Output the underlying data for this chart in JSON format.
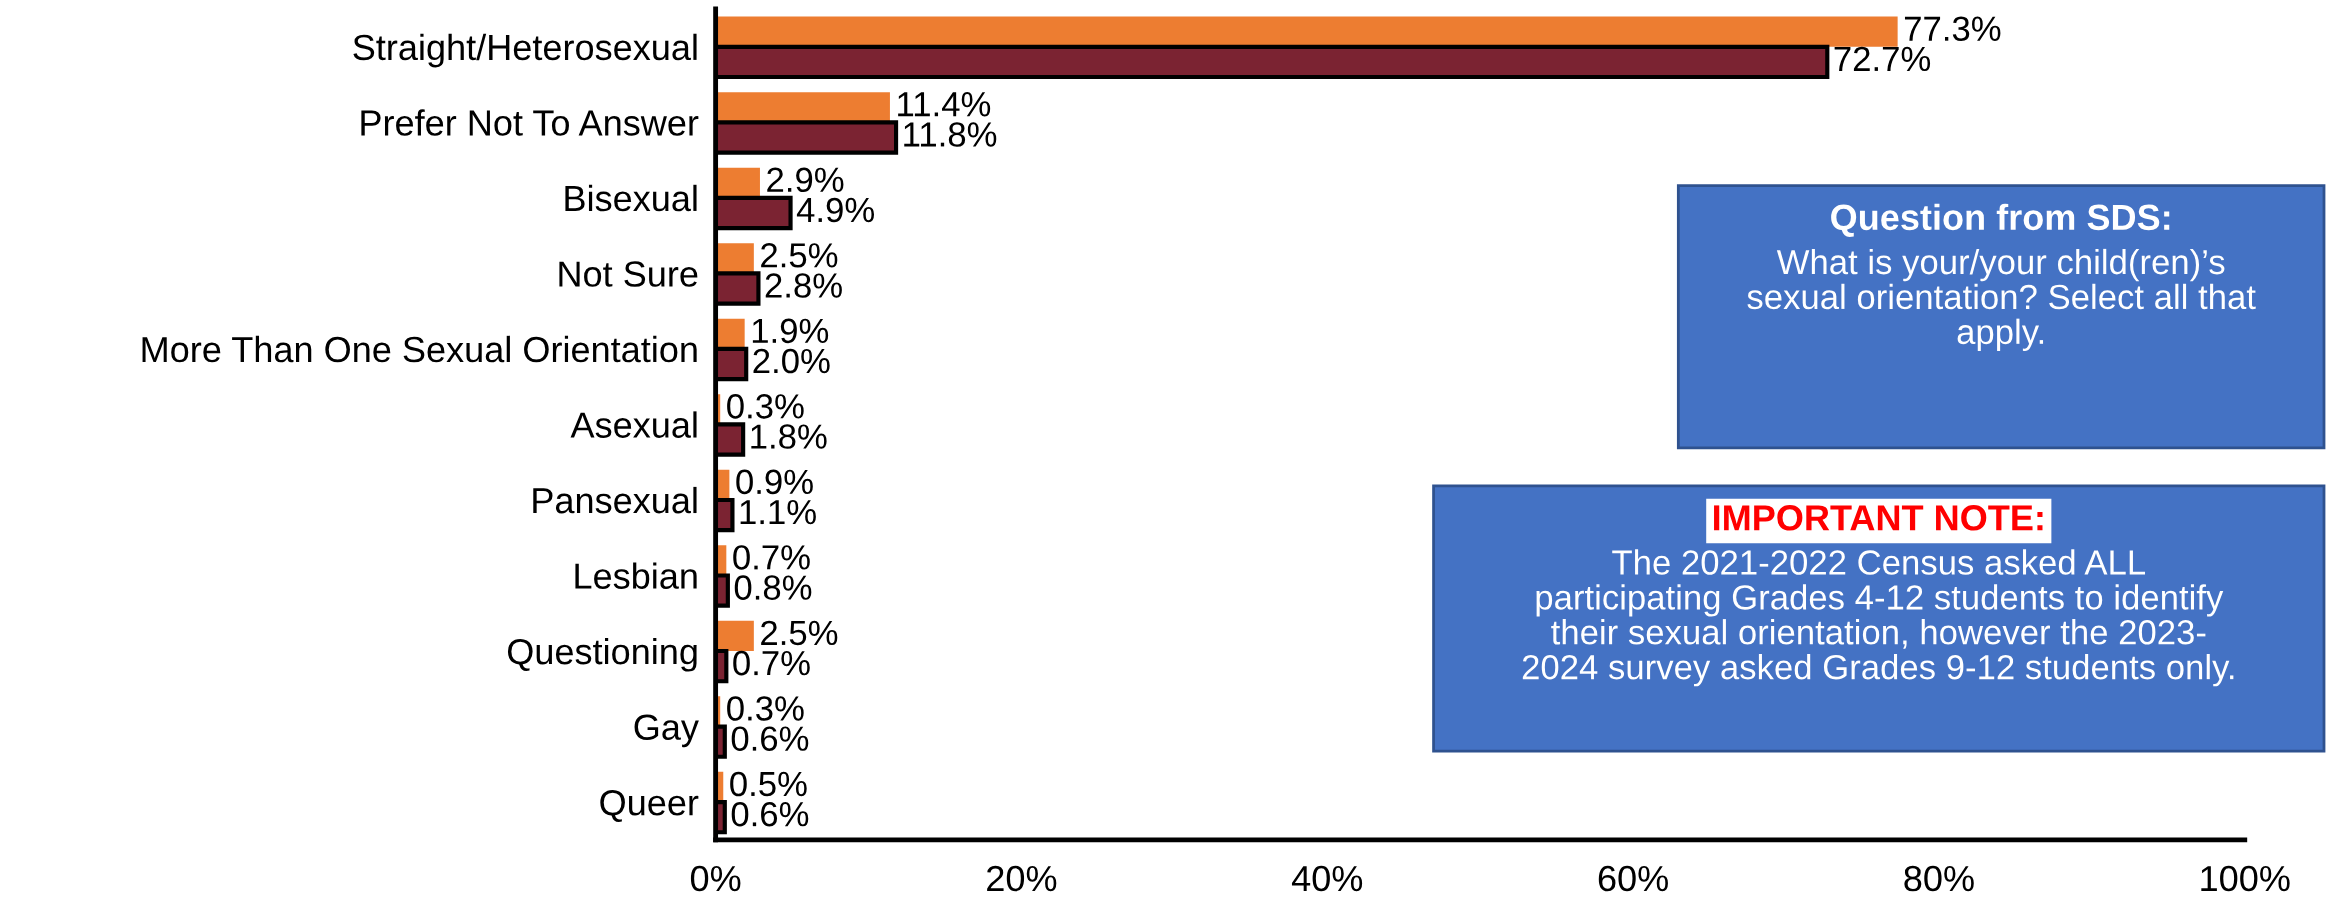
{
  "chart_data": {
    "type": "bar",
    "orientation": "horizontal",
    "categories": [
      "Straight/Heterosexual",
      "Prefer Not To Answer",
      "Bisexual",
      "Not Sure",
      "More Than One Sexual Orientation",
      "Asexual",
      "Pansexual",
      "Lesbian",
      "Questioning",
      "Gay",
      "Queer"
    ],
    "series": [
      {
        "color": "#ed7d31",
        "values": [
          77.3,
          11.4,
          2.9,
          2.5,
          1.9,
          0.3,
          0.9,
          0.7,
          2.5,
          0.3,
          0.5
        ],
        "value_labels": [
          "77.3%",
          "11.4%",
          "2.9%",
          "2.5%",
          "1.9%",
          "0.3%",
          "0.9%",
          "0.7%",
          "2.5%",
          "0.3%",
          "0.5%"
        ]
      },
      {
        "color": "#7b2332",
        "values": [
          72.7,
          11.8,
          4.9,
          2.8,
          2.0,
          1.8,
          1.1,
          0.8,
          0.7,
          0.6,
          0.6
        ],
        "value_labels": [
          "72.7%",
          "11.8%",
          "4.9%",
          "2.8%",
          "2.0%",
          "1.8%",
          "1.1%",
          "0.8%",
          "0.7%",
          "0.6%",
          "0.6%"
        ]
      }
    ],
    "xlim": [
      0,
      100
    ],
    "xticks": [
      {
        "value": 0,
        "label": "0%"
      },
      {
        "value": 20,
        "label": "20%"
      },
      {
        "value": 40,
        "label": "40%"
      },
      {
        "value": 60,
        "label": "60%"
      },
      {
        "value": 80,
        "label": "80%"
      },
      {
        "value": 100,
        "label": "100%"
      }
    ],
    "grid": false,
    "legend": false,
    "annotations": [
      "Question from SDS:",
      "What is your/your child(ren)’s\nsexual orientation? Select all that\napply.",
      "IMPORTANT NOTE:",
      "The 2021-2022 Census asked ALL\nparticipating Grades 4-12 students to identify\ntheir sexual orientation, however the 2023-\n2024 survey asked Grades 9-12 students only."
    ]
  }
}
